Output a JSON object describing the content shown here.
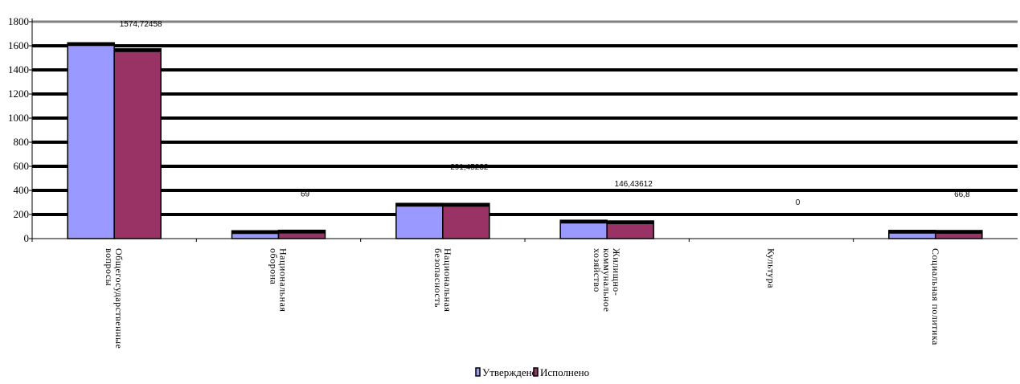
{
  "chart_data": {
    "type": "bar",
    "categories": [
      [
        "Общегосударственные",
        "вопросы"
      ],
      [
        "Национальная",
        "оборона"
      ],
      [
        "Национальная",
        "безопасность"
      ],
      [
        "Жилищно-",
        "коммунальное",
        "хозяйство"
      ],
      [
        "Культура"
      ],
      [
        "Социальная политика"
      ]
    ],
    "series": [
      {
        "name": "Утверждено",
        "values": [
          1625,
          65,
          292,
          152,
          0,
          68
        ]
      },
      {
        "name": "Исполнено",
        "values": [
          1574.72458,
          69,
          291.45232,
          146.43612,
          0,
          66.8
        ]
      }
    ],
    "data_labels": [
      "1574,72458",
      "69",
      "291,45232",
      "146,43612",
      "0",
      "66,8"
    ],
    "ylim": [
      0,
      1800
    ],
    "yticks": [
      0,
      200,
      400,
      600,
      800,
      1000,
      1200,
      1400,
      1600,
      1800
    ],
    "grid": true,
    "legend": "bottom",
    "colors": {
      "series": [
        "#9999ff",
        "#993366"
      ],
      "grid": "#000000",
      "top_line": "#808080"
    },
    "title": "",
    "xlabel": "",
    "ylabel": ""
  }
}
